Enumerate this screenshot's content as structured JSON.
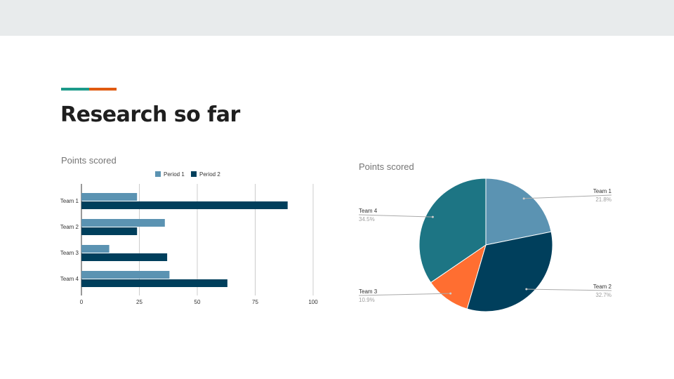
{
  "slide": {
    "title": "Research so far",
    "colors": {
      "accent_teal": "#1c9a8a",
      "accent_orange": "#e05a10",
      "top_band": "#e8ebec"
    }
  },
  "chart_data": [
    {
      "type": "bar",
      "orientation": "horizontal",
      "title": "Points scored",
      "categories": [
        "Team 1",
        "Team 2",
        "Team 3",
        "Team 4"
      ],
      "series": [
        {
          "name": "Period 1",
          "color": "#5b93b2",
          "values": [
            24,
            36,
            12,
            38
          ]
        },
        {
          "name": "Period 2",
          "color": "#003f5c",
          "values": [
            89,
            24,
            37,
            63
          ]
        }
      ],
      "xlim": [
        0,
        100
      ],
      "xticks": [
        0,
        25,
        50,
        75,
        100
      ],
      "grid": true,
      "legend": "top"
    },
    {
      "type": "pie",
      "title": "Points scored",
      "slices": [
        {
          "label": "Team 1",
          "value": 21.8,
          "pct_label": "21.8%",
          "color": "#5b93b2"
        },
        {
          "label": "Team 2",
          "value": 32.7,
          "pct_label": "32.7%",
          "color": "#003f5c"
        },
        {
          "label": "Team 3",
          "value": 10.9,
          "pct_label": "10.9%",
          "color": "#ff6e31"
        },
        {
          "label": "Team 4",
          "value": 34.5,
          "pct_label": "34.5%",
          "color": "#1d7584"
        }
      ],
      "start_angle_deg": 0,
      "direction": "clockwise",
      "legend": "labeled-slices"
    }
  ]
}
